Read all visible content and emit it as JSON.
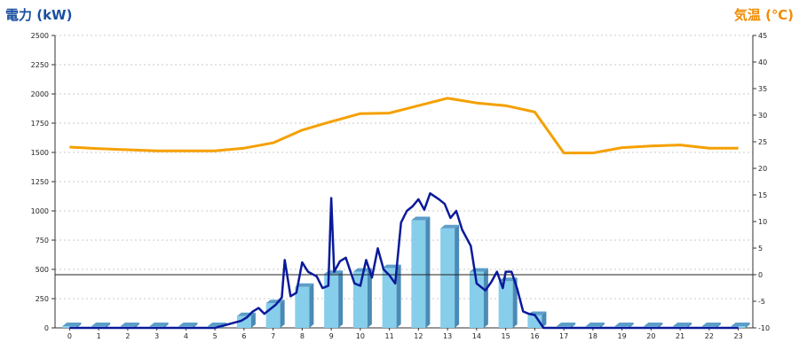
{
  "chart_data": {
    "type": "bar",
    "title": "",
    "xlabel": "",
    "ylabel_left": "電力 (kW)",
    "ylabel_right": "気温 (℃)",
    "x_ticks": [
      "0",
      "1",
      "2",
      "3",
      "4",
      "5",
      "6",
      "7",
      "8",
      "9",
      "10",
      "11",
      "12",
      "13",
      "14",
      "15",
      "16",
      "17",
      "18",
      "19",
      "20",
      "21",
      "22",
      "23"
    ],
    "ylim_left": [
      0,
      2500
    ],
    "y_ticks_left": [
      "0",
      "250",
      "500",
      "750",
      "1000",
      "1250",
      "1500",
      "1750",
      "2000",
      "2250",
      "2500"
    ],
    "ylim_right": [
      -10,
      45
    ],
    "y_ticks_right": [
      "-10",
      "-5",
      "0",
      "5",
      "10",
      "15",
      "20",
      "25",
      "30",
      "35",
      "40",
      "45"
    ],
    "grid": true,
    "reference_line_right": 0,
    "bars_power": {
      "x": [
        0,
        1,
        2,
        3,
        4,
        5,
        6,
        7,
        8,
        9,
        10,
        11,
        12,
        13,
        14,
        15,
        16,
        17,
        18,
        19,
        20,
        21,
        22,
        23
      ],
      "values": [
        15,
        15,
        15,
        15,
        15,
        15,
        100,
        210,
        350,
        460,
        480,
        510,
        920,
        850,
        480,
        400,
        110,
        15,
        15,
        15,
        15,
        15,
        15,
        15
      ]
    },
    "line_power": {
      "x": [
        0,
        1,
        2,
        3,
        4,
        5,
        5.3,
        5.6,
        5.9,
        6.1,
        6.3,
        6.5,
        6.7,
        6.9,
        7.1,
        7.3,
        7.4,
        7.6,
        7.8,
        8.0,
        8.2,
        8.5,
        8.7,
        8.9,
        9.0,
        9.1,
        9.3,
        9.5,
        9.8,
        10.0,
        10.2,
        10.4,
        10.6,
        10.8,
        11.0,
        11.2,
        11.4,
        11.6,
        11.8,
        12.0,
        12.2,
        12.4,
        12.7,
        12.9,
        13.1,
        13.3,
        13.5,
        13.8,
        14.0,
        14.3,
        14.5,
        14.7,
        14.9,
        15.0,
        15.2,
        15.4,
        15.6,
        15.8,
        16.0,
        16.3,
        16.6,
        16.8,
        17.2,
        18,
        19,
        20,
        21,
        22,
        23
      ],
      "values": [
        0,
        0,
        0,
        0,
        0,
        0,
        20,
        40,
        60,
        90,
        140,
        170,
        120,
        160,
        200,
        260,
        580,
        270,
        300,
        560,
        480,
        440,
        340,
        360,
        1110,
        480,
        570,
        600,
        380,
        360,
        580,
        430,
        680,
        500,
        450,
        380,
        900,
        1000,
        1040,
        1100,
        1010,
        1150,
        1100,
        1060,
        940,
        1000,
        840,
        700,
        380,
        320,
        390,
        480,
        340,
        480,
        480,
        330,
        140,
        120,
        110,
        0,
        0,
        0,
        0,
        0,
        0,
        0,
        0,
        0,
        0
      ]
    },
    "line_temperature": {
      "x": [
        0,
        1,
        2,
        3,
        4,
        5,
        6,
        7,
        8,
        9,
        10,
        11,
        12,
        13,
        14,
        15,
        16,
        17,
        18,
        19,
        20,
        21,
        22,
        23
      ],
      "values": [
        24,
        23.7,
        23.5,
        23.3,
        23.3,
        23.3,
        23.8,
        24.8,
        27.2,
        28.8,
        30.3,
        30.4,
        31.8,
        33.2,
        32.3,
        31.8,
        30.6,
        22.9,
        22.9,
        23.9,
        24.2,
        24.4,
        23.8,
        23.8
      ]
    }
  }
}
